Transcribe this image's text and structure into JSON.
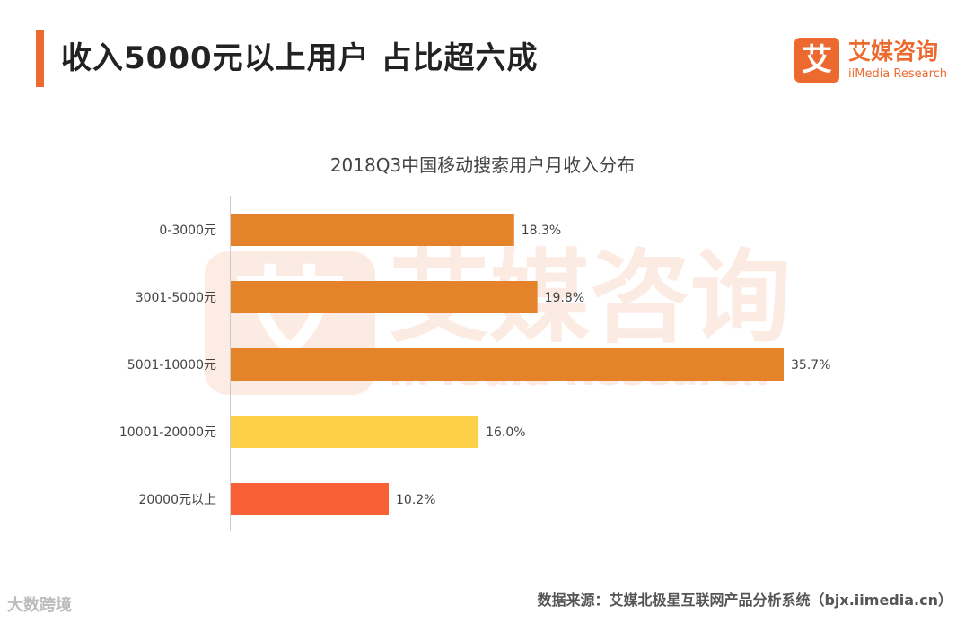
{
  "header": {
    "title": "收入5000元以上用户 占比超六成",
    "accent_color": "#ec6a2f"
  },
  "brand": {
    "logo_char": "艾",
    "name": "艾媒咨询",
    "sub": "iiMedia Research",
    "color": "#ec6a2f"
  },
  "watermark": {
    "logo_char": "艾",
    "name": "艾媒咨询",
    "sub": "iiMedia Research"
  },
  "chart_data": {
    "type": "bar",
    "orientation": "horizontal",
    "title": "2018Q3中国移动搜索用户月收入分布",
    "categories": [
      "0-3000元",
      "3001-5000元",
      "5001-10000元",
      "10001-20000元",
      "20000元以上"
    ],
    "values": [
      18.3,
      19.8,
      35.7,
      16.0,
      10.2
    ],
    "value_labels": [
      "18.3%",
      "19.8%",
      "35.7%",
      "16.0%",
      "10.2%"
    ],
    "colors": [
      "#e5832b",
      "#e5832b",
      "#e5832b",
      "#fdd047",
      "#f96036"
    ],
    "unit": "%",
    "xlim": [
      0,
      36
    ],
    "grid": false,
    "legend": "none"
  },
  "footer": {
    "source": "数据来源：艾媒北极星互联网产品分析系统（bjx.iimedia.cn）",
    "corner_mark": "大数跨境"
  }
}
